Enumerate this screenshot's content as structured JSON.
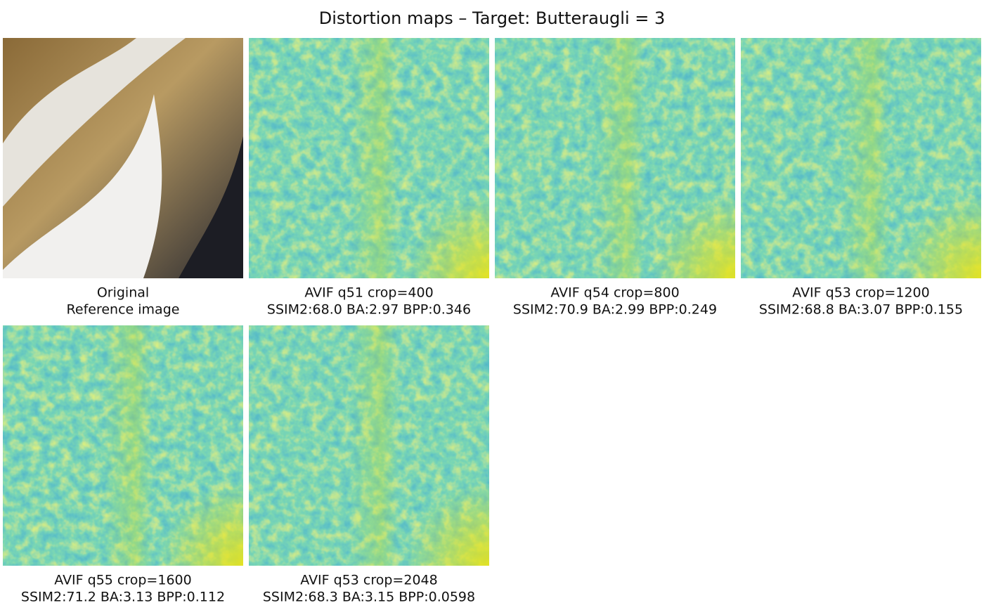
{
  "title": "Distortion maps – Target: Butteraugli = 3",
  "panels": [
    {
      "lines": [
        "Original",
        "Reference image"
      ]
    },
    {
      "lines": [
        "AVIF q51 crop=400",
        "SSIM2:68.0 BA:2.97 BPP:0.346"
      ]
    },
    {
      "lines": [
        "AVIF q54 crop=800",
        "SSIM2:70.9 BA:2.99 BPP:0.249"
      ]
    },
    {
      "lines": [
        "AVIF q53 crop=1200",
        "SSIM2:68.8 BA:3.07 BPP:0.155"
      ]
    },
    {
      "lines": [
        "AVIF q55 crop=1600",
        "SSIM2:71.2 BA:3.13 BPP:0.112"
      ]
    },
    {
      "lines": [
        "AVIF q53 crop=2048",
        "SSIM2:68.3 BA:3.15 BPP:0.0598"
      ]
    }
  ]
}
